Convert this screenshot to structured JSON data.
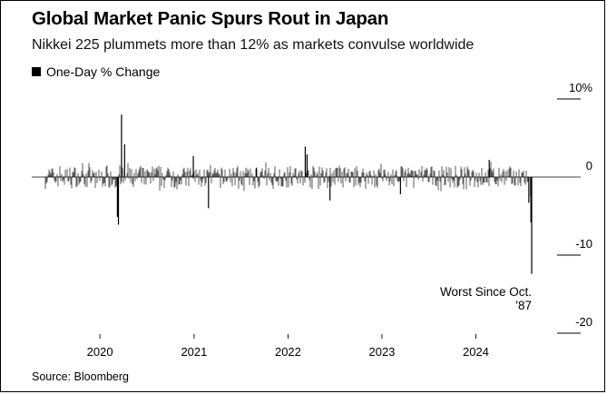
{
  "title": "Global Market Panic Spurs Rout in Japan",
  "subtitle": "Nikkei 225 plummets more than 12% as markets convulse worldwide",
  "source": "Source: Bloomberg",
  "colors": {
    "bars": "#000000",
    "axis": "#000000",
    "tick": "#000000"
  },
  "chart_data": {
    "type": "bar",
    "title": "Global Market Panic Spurs Rout in Japan",
    "subtitle": "Nikkei 225 plummets more than 12% as markets convulse worldwide",
    "legend": [
      "One-Day % Change"
    ],
    "legend_position": "top-left",
    "xlabel": "",
    "ylabel": "",
    "x_range": [
      "2019-06-03",
      "2024-08-05"
    ],
    "ylim": [
      -20,
      10
    ],
    "y_ticks": [
      10,
      0,
      -10,
      -20
    ],
    "y_tick_labels": [
      "10%",
      "0",
      "-10",
      "-20"
    ],
    "x_ticks": [
      "2020-01-01",
      "2021-01-01",
      "2022-01-01",
      "2023-01-01",
      "2024-01-01"
    ],
    "x_tick_labels": [
      "2020",
      "2021",
      "2022",
      "2023",
      "2024"
    ],
    "grid": false,
    "y_axis_side": "right",
    "series": [
      {
        "name": "One-Day % Change",
        "notable_points": [
          {
            "date": "2020-03-09",
            "value": -5.1
          },
          {
            "date": "2020-03-13",
            "value": -6.1
          },
          {
            "date": "2020-03-25",
            "value": 8.0
          },
          {
            "date": "2020-04-06",
            "value": 4.2
          },
          {
            "date": "2020-12-29",
            "value": 2.7
          },
          {
            "date": "2021-02-26",
            "value": -4.0
          },
          {
            "date": "2021-08-31",
            "value": 1.2
          },
          {
            "date": "2022-03-09",
            "value": 3.9
          },
          {
            "date": "2022-03-16",
            "value": 2.9
          },
          {
            "date": "2022-06-13",
            "value": -3.0
          },
          {
            "date": "2023-03-14",
            "value": -2.2
          },
          {
            "date": "2024-02-22",
            "value": 2.2
          },
          {
            "date": "2024-07-25",
            "value": -3.3
          },
          {
            "date": "2024-08-01",
            "value": -2.5
          },
          {
            "date": "2024-08-02",
            "value": -5.8
          },
          {
            "date": "2024-08-05",
            "value": -12.4
          }
        ]
      }
    ],
    "annotations": [
      {
        "text": "Worst Since Oct.",
        "target_date": "2024-08-05"
      },
      {
        "text": "'87",
        "target_date": "2024-08-05"
      }
    ]
  }
}
